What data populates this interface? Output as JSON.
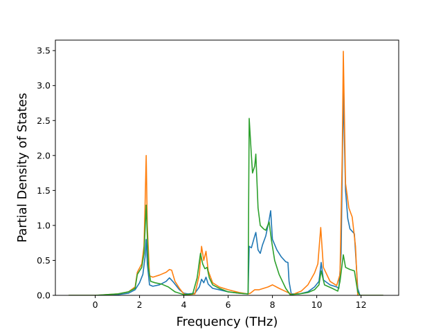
{
  "chart_data": {
    "type": "line",
    "title": "",
    "xlabel": "Frequency (THz)",
    "ylabel": "Partial Density of States",
    "xlim": [
      -1.8,
      13.7
    ],
    "ylim": [
      0.0,
      3.65
    ],
    "xticks": [
      0,
      2,
      4,
      6,
      8,
      10,
      12
    ],
    "yticks": [
      0.0,
      0.5,
      1.0,
      1.5,
      2.0,
      2.5,
      3.0,
      3.5
    ],
    "xtick_labels": [
      "0",
      "2",
      "4",
      "6",
      "8",
      "10",
      "12"
    ],
    "ytick_labels": [
      "0.0",
      "0.5",
      "1.0",
      "1.5",
      "2.0",
      "2.5",
      "3.0",
      "3.5"
    ],
    "grid": false,
    "legend": "none",
    "series": [
      {
        "color": "#1f77b4",
        "points": [
          [
            -1.2,
            0.0
          ],
          [
            0.0,
            0.0
          ],
          [
            1.0,
            0.01
          ],
          [
            1.5,
            0.03
          ],
          [
            1.8,
            0.08
          ],
          [
            2.0,
            0.18
          ],
          [
            2.15,
            0.3
          ],
          [
            2.25,
            0.55
          ],
          [
            2.3,
            0.8
          ],
          [
            2.35,
            0.45
          ],
          [
            2.45,
            0.15
          ],
          [
            2.6,
            0.13
          ],
          [
            2.9,
            0.15
          ],
          [
            3.2,
            0.2
          ],
          [
            3.35,
            0.25
          ],
          [
            3.5,
            0.2
          ],
          [
            3.8,
            0.08
          ],
          [
            4.0,
            0.03
          ],
          [
            4.2,
            0.02
          ],
          [
            4.5,
            0.03
          ],
          [
            4.7,
            0.12
          ],
          [
            4.8,
            0.23
          ],
          [
            4.9,
            0.18
          ],
          [
            5.0,
            0.26
          ],
          [
            5.1,
            0.16
          ],
          [
            5.3,
            0.1
          ],
          [
            5.6,
            0.08
          ],
          [
            6.0,
            0.05
          ],
          [
            6.5,
            0.03
          ],
          [
            6.9,
            0.02
          ],
          [
            6.95,
            0.7
          ],
          [
            7.05,
            0.68
          ],
          [
            7.2,
            0.85
          ],
          [
            7.25,
            0.9
          ],
          [
            7.35,
            0.65
          ],
          [
            7.45,
            0.6
          ],
          [
            7.55,
            0.72
          ],
          [
            7.7,
            0.85
          ],
          [
            7.85,
            1.08
          ],
          [
            7.92,
            1.21
          ],
          [
            8.0,
            0.8
          ],
          [
            8.2,
            0.65
          ],
          [
            8.4,
            0.55
          ],
          [
            8.6,
            0.48
          ],
          [
            8.7,
            0.47
          ],
          [
            8.75,
            0.2
          ],
          [
            8.85,
            0.02
          ],
          [
            9.2,
            0.02
          ],
          [
            9.6,
            0.05
          ],
          [
            9.9,
            0.12
          ],
          [
            10.1,
            0.2
          ],
          [
            10.2,
            0.47
          ],
          [
            10.3,
            0.22
          ],
          [
            10.6,
            0.15
          ],
          [
            10.9,
            0.12
          ],
          [
            11.0,
            0.1
          ],
          [
            11.1,
            0.6
          ],
          [
            11.2,
            2.9
          ],
          [
            11.3,
            1.5
          ],
          [
            11.4,
            1.1
          ],
          [
            11.5,
            0.95
          ],
          [
            11.7,
            0.88
          ],
          [
            11.85,
            0.1
          ],
          [
            11.95,
            0.0
          ],
          [
            13.0,
            0.0
          ]
        ]
      },
      {
        "color": "#ff7f0e",
        "points": [
          [
            -1.2,
            0.0
          ],
          [
            0.0,
            0.0
          ],
          [
            1.0,
            0.02
          ],
          [
            1.5,
            0.05
          ],
          [
            1.8,
            0.12
          ],
          [
            1.9,
            0.33
          ],
          [
            2.1,
            0.45
          ],
          [
            2.2,
            0.7
          ],
          [
            2.25,
            1.3
          ],
          [
            2.3,
            2.0
          ],
          [
            2.35,
            1.0
          ],
          [
            2.45,
            0.28
          ],
          [
            2.6,
            0.26
          ],
          [
            2.9,
            0.29
          ],
          [
            3.2,
            0.33
          ],
          [
            3.35,
            0.37
          ],
          [
            3.45,
            0.36
          ],
          [
            3.6,
            0.2
          ],
          [
            3.8,
            0.1
          ],
          [
            4.0,
            0.02
          ],
          [
            4.2,
            0.01
          ],
          [
            4.5,
            0.02
          ],
          [
            4.7,
            0.3
          ],
          [
            4.8,
            0.7
          ],
          [
            4.9,
            0.5
          ],
          [
            5.0,
            0.63
          ],
          [
            5.1,
            0.35
          ],
          [
            5.3,
            0.18
          ],
          [
            5.6,
            0.12
          ],
          [
            6.0,
            0.08
          ],
          [
            6.5,
            0.04
          ],
          [
            6.9,
            0.02
          ],
          [
            7.0,
            0.03
          ],
          [
            7.2,
            0.08
          ],
          [
            7.4,
            0.08
          ],
          [
            7.6,
            0.1
          ],
          [
            7.8,
            0.12
          ],
          [
            8.0,
            0.15
          ],
          [
            8.3,
            0.1
          ],
          [
            8.7,
            0.04
          ],
          [
            8.9,
            0.01
          ],
          [
            9.3,
            0.06
          ],
          [
            9.6,
            0.15
          ],
          [
            9.9,
            0.32
          ],
          [
            10.05,
            0.45
          ],
          [
            10.18,
            0.97
          ],
          [
            10.3,
            0.4
          ],
          [
            10.6,
            0.2
          ],
          [
            10.9,
            0.14
          ],
          [
            11.05,
            0.3
          ],
          [
            11.15,
            2.0
          ],
          [
            11.2,
            3.49
          ],
          [
            11.3,
            1.6
          ],
          [
            11.45,
            1.25
          ],
          [
            11.6,
            1.12
          ],
          [
            11.75,
            0.7
          ],
          [
            11.85,
            0.0
          ],
          [
            13.0,
            0.0
          ]
        ]
      },
      {
        "color": "#2ca02c",
        "points": [
          [
            -1.2,
            0.0
          ],
          [
            0.0,
            0.0
          ],
          [
            1.0,
            0.02
          ],
          [
            1.5,
            0.05
          ],
          [
            1.8,
            0.1
          ],
          [
            1.9,
            0.3
          ],
          [
            2.1,
            0.4
          ],
          [
            2.2,
            0.6
          ],
          [
            2.3,
            1.29
          ],
          [
            2.4,
            0.4
          ],
          [
            2.5,
            0.2
          ],
          [
            2.7,
            0.18
          ],
          [
            3.0,
            0.16
          ],
          [
            3.3,
            0.12
          ],
          [
            3.6,
            0.05
          ],
          [
            4.0,
            0.01
          ],
          [
            4.4,
            0.02
          ],
          [
            4.6,
            0.25
          ],
          [
            4.75,
            0.6
          ],
          [
            4.85,
            0.45
          ],
          [
            4.95,
            0.38
          ],
          [
            5.05,
            0.4
          ],
          [
            5.15,
            0.25
          ],
          [
            5.3,
            0.15
          ],
          [
            5.6,
            0.1
          ],
          [
            6.0,
            0.05
          ],
          [
            6.5,
            0.03
          ],
          [
            6.9,
            0.02
          ],
          [
            6.95,
            2.53
          ],
          [
            7.05,
            2.0
          ],
          [
            7.1,
            1.75
          ],
          [
            7.2,
            1.85
          ],
          [
            7.25,
            2.02
          ],
          [
            7.35,
            1.25
          ],
          [
            7.45,
            1.0
          ],
          [
            7.6,
            0.95
          ],
          [
            7.7,
            0.93
          ],
          [
            7.85,
            1.05
          ],
          [
            7.95,
            0.8
          ],
          [
            8.1,
            0.5
          ],
          [
            8.3,
            0.3
          ],
          [
            8.6,
            0.1
          ],
          [
            8.8,
            0.01
          ],
          [
            9.2,
            0.02
          ],
          [
            9.6,
            0.04
          ],
          [
            9.9,
            0.08
          ],
          [
            10.1,
            0.15
          ],
          [
            10.2,
            0.35
          ],
          [
            10.35,
            0.15
          ],
          [
            10.7,
            0.1
          ],
          [
            10.95,
            0.06
          ],
          [
            11.05,
            0.2
          ],
          [
            11.2,
            0.58
          ],
          [
            11.3,
            0.4
          ],
          [
            11.5,
            0.37
          ],
          [
            11.7,
            0.35
          ],
          [
            11.85,
            0.05
          ],
          [
            11.95,
            0.0
          ],
          [
            13.0,
            0.0
          ]
        ]
      }
    ]
  }
}
